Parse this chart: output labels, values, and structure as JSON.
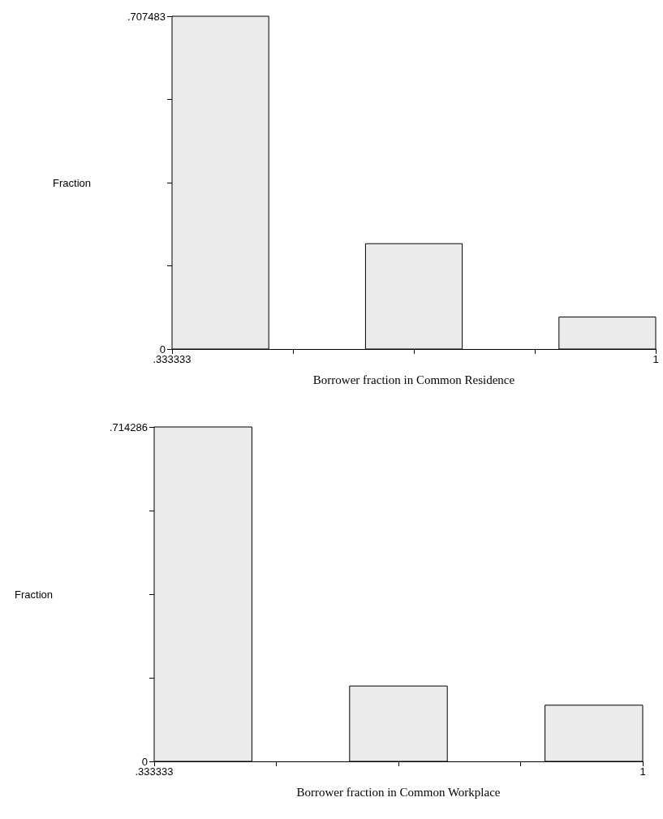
{
  "chart_data": [
    {
      "type": "histogram",
      "xlabel": "Borrower fraction in Common Residence",
      "ylabel": "Fraction",
      "color": "#ebebeb",
      "bins": [
        0.333333,
        0.466667,
        0.6,
        0.733333,
        0.866667,
        1
      ],
      "values": [
        0.707483,
        0,
        0.224,
        0,
        0.068
      ],
      "xlim": [
        0.333333,
        1
      ],
      "xticks": [
        {
          "value": 0.333333,
          "label": ".333333"
        },
        {
          "value": 0.5,
          "label": null
        },
        {
          "value": 0.666667,
          "label": null
        },
        {
          "value": 0.833333,
          "label": null
        },
        1
      ],
      "ylim": [
        0,
        0.707483
      ],
      "yticks": [
        0,
        {
          "value": 0.176871,
          "label": null
        },
        {
          "value": 0.353742,
          "label": null
        },
        {
          "value": 0.530612,
          "label": null
        },
        {
          "value": 0.707483,
          "label": ".707483"
        }
      ]
    },
    {
      "type": "histogram",
      "xlabel": "Borrower fraction in Common Workplace",
      "ylabel": "Fraction",
      "color": "#ebebeb",
      "bins": [
        0.333333,
        0.466667,
        0.6,
        0.733333,
        0.866667,
        1
      ],
      "values": [
        0.714286,
        0,
        0.161,
        0,
        0.12
      ],
      "xlim": [
        0.333333,
        1
      ],
      "xticks": [
        {
          "value": 0.333333,
          "label": ".333333"
        },
        {
          "value": 0.5,
          "label": null
        },
        {
          "value": 0.666667,
          "label": null
        },
        {
          "value": 0.833333,
          "label": null
        },
        1
      ],
      "ylim": [
        0,
        0.714286
      ],
      "yticks": [
        0,
        {
          "value": 0.178572,
          "label": null
        },
        {
          "value": 0.357143,
          "label": null
        },
        {
          "value": 0.535715,
          "label": null
        },
        {
          "value": 0.714286,
          "label": ".714286"
        }
      ]
    }
  ]
}
